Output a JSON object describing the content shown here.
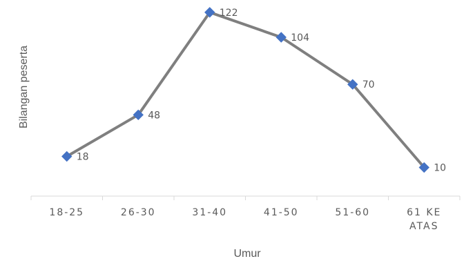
{
  "chart_data": {
    "type": "line",
    "categories": [
      "18-25",
      "26-30",
      "31-40",
      "41-50",
      "51-60",
      "61 KE ATAS"
    ],
    "category_lines": [
      [
        "18-25"
      ],
      [
        "26-30"
      ],
      [
        "31-40"
      ],
      [
        "41-50"
      ],
      [
        "51-60"
      ],
      [
        "61 KE",
        "ATAS"
      ]
    ],
    "values": [
      18,
      48,
      122,
      104,
      70,
      10
    ],
    "data_labels": [
      "18",
      "48",
      "122",
      "104",
      "70",
      "10"
    ],
    "xlabel": "Umur",
    "ylabel": "Bilangan peserta",
    "grid": false,
    "legend": "none",
    "line_color": "#7f7f7f",
    "marker_color": "#4472c4",
    "marker": "diamond"
  }
}
